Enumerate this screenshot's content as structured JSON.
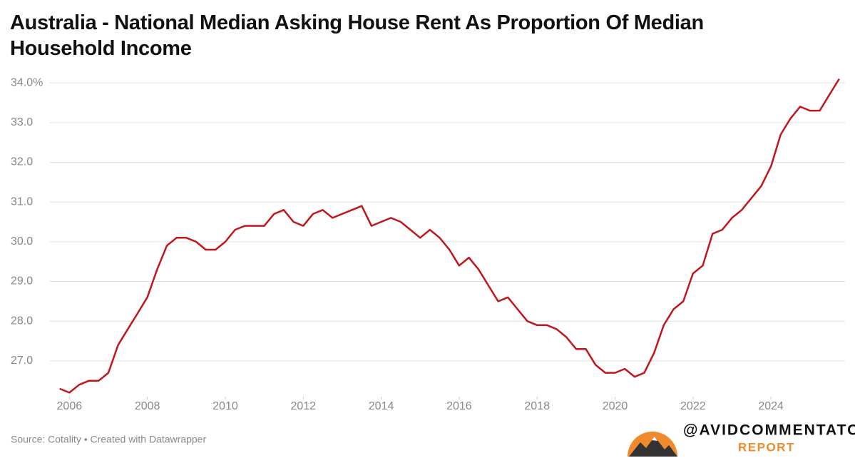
{
  "chart_data": {
    "type": "line",
    "title": "Australia - National Median Asking House Rent As Proportion Of Median Household Income",
    "source": "Source: Cotality • Created with Datawrapper",
    "watermark": {
      "handle": "@AVIDCOMMENTATOR",
      "subtitle": "REPORT"
    },
    "x": [
      2005.75,
      2006,
      2006.25,
      2006.5,
      2006.75,
      2007,
      2007.25,
      2007.5,
      2007.75,
      2008,
      2008.25,
      2008.5,
      2008.75,
      2009,
      2009.25,
      2009.5,
      2009.75,
      2010,
      2010.25,
      2010.5,
      2010.75,
      2011,
      2011.25,
      2011.5,
      2011.75,
      2012,
      2012.25,
      2012.5,
      2012.75,
      2013,
      2013.25,
      2013.5,
      2013.75,
      2014,
      2014.25,
      2014.5,
      2014.75,
      2015,
      2015.25,
      2015.5,
      2015.75,
      2016,
      2016.25,
      2016.5,
      2016.75,
      2017,
      2017.25,
      2017.5,
      2017.75,
      2018,
      2018.25,
      2018.5,
      2018.75,
      2019,
      2019.25,
      2019.5,
      2019.75,
      2020,
      2020.25,
      2020.5,
      2020.75,
      2021,
      2021.25,
      2021.5,
      2021.75,
      2022,
      2022.25,
      2022.5,
      2022.75,
      2023,
      2023.25,
      2023.5,
      2023.75,
      2024,
      2024.25,
      2024.5,
      2024.75,
      2025,
      2025.25,
      2025.5,
      2025.75
    ],
    "series": [
      {
        "color": "#c0171d",
        "values": [
          26.3,
          26.2,
          26.4,
          26.5,
          26.5,
          26.7,
          27.4,
          27.8,
          28.2,
          28.6,
          29.3,
          29.9,
          30.1,
          30.1,
          30.0,
          29.8,
          29.8,
          30.0,
          30.3,
          30.4,
          30.4,
          30.4,
          30.7,
          30.8,
          30.5,
          30.4,
          30.7,
          30.8,
          30.6,
          30.7,
          30.8,
          30.9,
          30.4,
          30.5,
          30.6,
          30.5,
          30.3,
          30.1,
          30.3,
          30.1,
          29.8,
          29.4,
          29.6,
          29.3,
          28.9,
          28.5,
          28.6,
          28.3,
          28.0,
          27.9,
          27.9,
          27.8,
          27.6,
          27.3,
          27.3,
          26.9,
          26.7,
          26.7,
          26.8,
          26.6,
          26.7,
          27.2,
          27.9,
          28.3,
          28.5,
          29.2,
          29.4,
          30.2,
          30.3,
          30.6,
          30.8,
          31.1,
          31.4,
          31.9,
          32.7,
          33.1,
          33.4,
          33.3,
          33.3,
          33.7,
          34.1
        ]
      }
    ],
    "xlim": [
      2005.5,
      2025.9
    ],
    "xticks": [
      2006,
      2008,
      2010,
      2012,
      2014,
      2016,
      2018,
      2020,
      2022,
      2024
    ],
    "ylim": [
      26.1,
      34.2
    ],
    "yticks": [
      {
        "value": 34,
        "label": "34.0%"
      },
      {
        "value": 33,
        "label": "33.0"
      },
      {
        "value": 32,
        "label": "32.0"
      },
      {
        "value": 31,
        "label": "31.0"
      },
      {
        "value": 30,
        "label": "30.0"
      },
      {
        "value": 29,
        "label": "29.0"
      },
      {
        "value": 28,
        "label": "28.0"
      },
      {
        "value": 27,
        "label": "27.0"
      }
    ],
    "grid": true
  }
}
